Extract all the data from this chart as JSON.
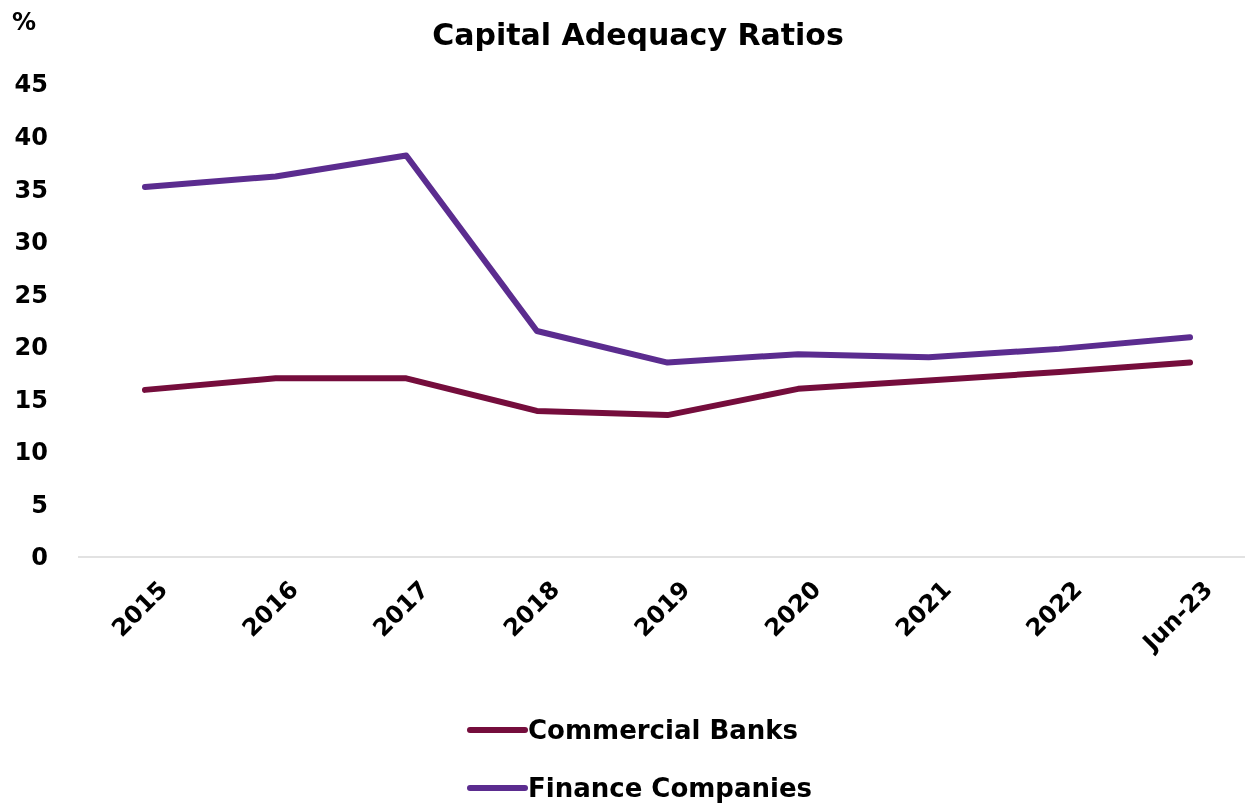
{
  "chart_data": {
    "type": "line",
    "title": "Capital Adequacy Ratios",
    "ylabel": "%",
    "categories": [
      "2015",
      "2016",
      "2017",
      "2018",
      "2019",
      "2020",
      "2021",
      "2022",
      "Jun-23"
    ],
    "series": [
      {
        "name": "Commercial Banks",
        "color": "#750d3c",
        "values": [
          15.9,
          17.0,
          17.0,
          13.9,
          13.5,
          16.0,
          16.8,
          17.6,
          18.5
        ]
      },
      {
        "name": "Finance Companies",
        "color": "#5b2c8f",
        "values": [
          35.2,
          36.2,
          38.2,
          21.5,
          18.5,
          19.3,
          19.0,
          19.8,
          20.9
        ]
      }
    ],
    "ylim": [
      0,
      45
    ],
    "yticks": [
      0,
      5,
      10,
      15,
      20,
      25,
      30,
      35,
      40,
      45
    ],
    "grid": false,
    "legend": "bottom",
    "marker": "none",
    "line_style": "solid"
  }
}
